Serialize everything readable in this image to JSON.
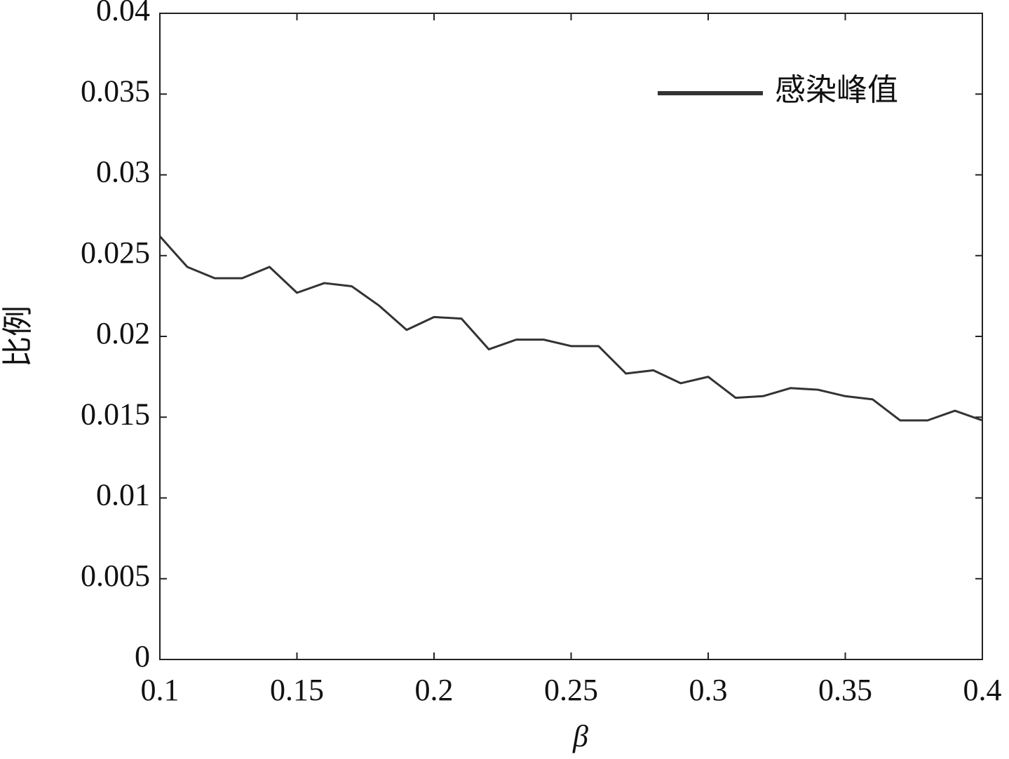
{
  "chart_data": {
    "type": "line",
    "xlabel": "β",
    "ylabel": "比例",
    "x": [
      0.1,
      0.11,
      0.12,
      0.13,
      0.14,
      0.15,
      0.16,
      0.17,
      0.18,
      0.19,
      0.2,
      0.21,
      0.22,
      0.23,
      0.24,
      0.25,
      0.26,
      0.27,
      0.28,
      0.29,
      0.3,
      0.31,
      0.32,
      0.33,
      0.34,
      0.35,
      0.36,
      0.37,
      0.38,
      0.39,
      0.4
    ],
    "series": [
      {
        "name": "感染峰值",
        "color": "#333333",
        "values": [
          0.0262,
          0.0243,
          0.0236,
          0.0236,
          0.0243,
          0.0227,
          0.0233,
          0.0231,
          0.0219,
          0.0204,
          0.0212,
          0.0211,
          0.0192,
          0.0198,
          0.0198,
          0.0194,
          0.0194,
          0.0177,
          0.0179,
          0.0171,
          0.0175,
          0.0162,
          0.0163,
          0.0168,
          0.0167,
          0.0163,
          0.0161,
          0.0148,
          0.0148,
          0.0154,
          0.0148
        ]
      }
    ],
    "xlim": [
      0.1,
      0.4
    ],
    "xticks": [
      0.1,
      0.15,
      0.2,
      0.25,
      0.3,
      0.35,
      0.4
    ],
    "ylim": [
      0,
      0.04
    ],
    "yticks": [
      0,
      0.005,
      0.01,
      0.015,
      0.02,
      0.025,
      0.03,
      0.035,
      0.04
    ],
    "legend": "upper right",
    "grid": false
  }
}
